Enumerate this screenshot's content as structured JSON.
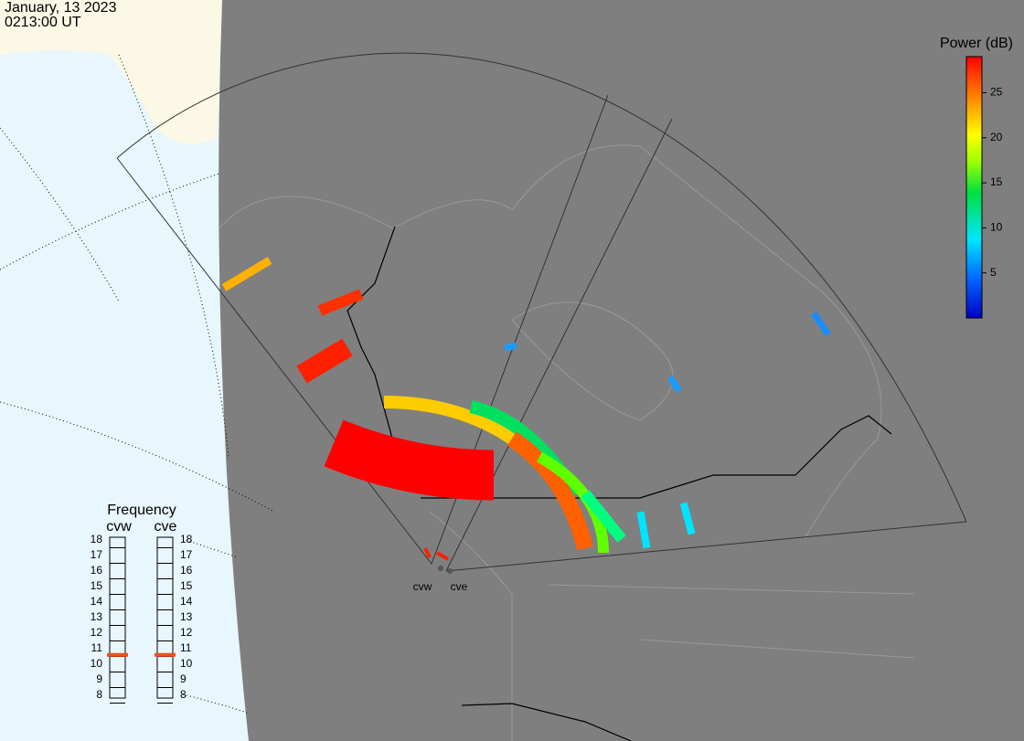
{
  "header": {
    "date": "January, 13 2023",
    "time": "0213:00 UT"
  },
  "colorbar": {
    "title": "Power (dB)",
    "range": [
      0,
      29
    ],
    "ticks": [
      5,
      10,
      15,
      20,
      25
    ]
  },
  "frequency": {
    "title": "Frequency",
    "range": [
      8,
      18
    ],
    "ticks": [
      8,
      9,
      10,
      11,
      12,
      13,
      14,
      15,
      16,
      17,
      18
    ],
    "radars": [
      {
        "name": "cvw",
        "value": 10.6,
        "color": "#e8541a"
      },
      {
        "name": "cve",
        "value": 10.6,
        "color": "#e8541a"
      }
    ]
  }
}
